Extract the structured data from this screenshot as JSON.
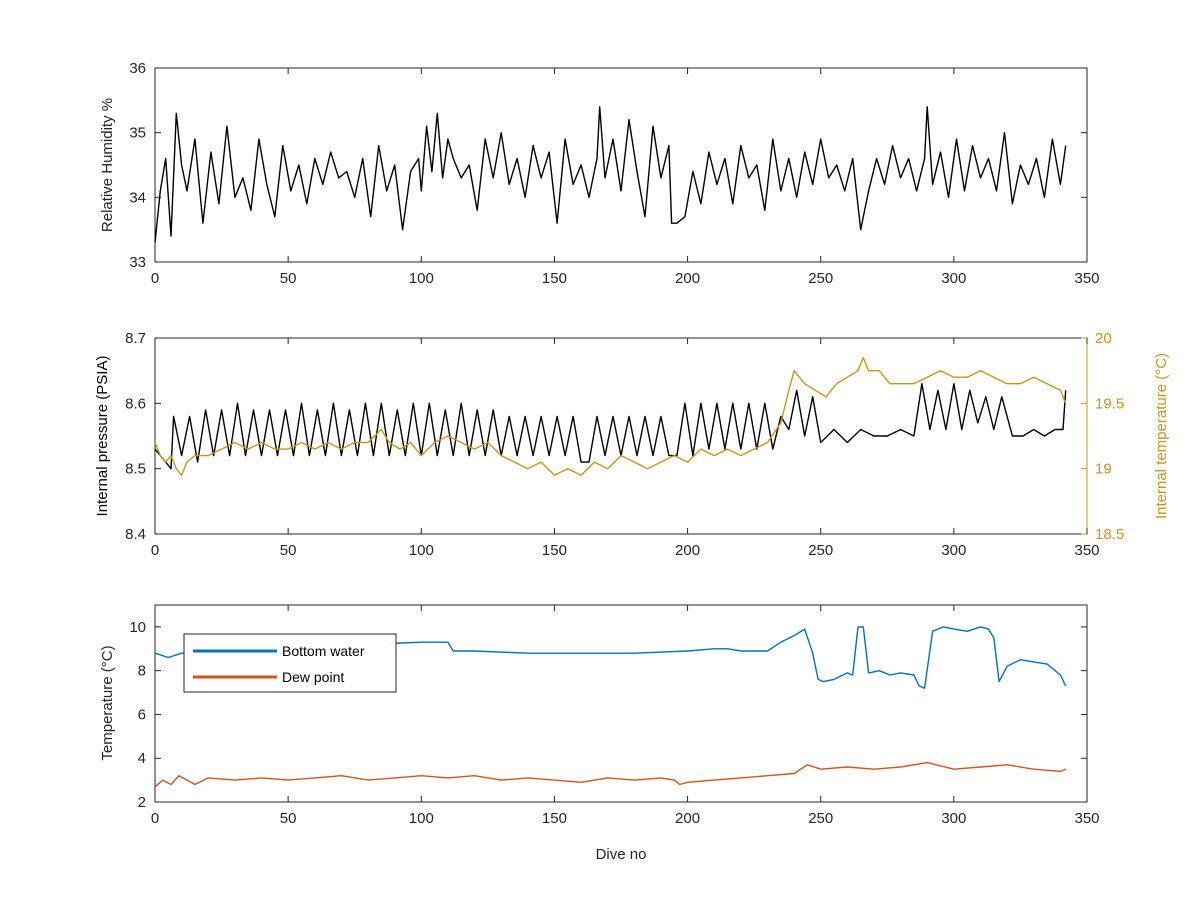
{
  "colors": {
    "black": "#000000",
    "gold": "#c8961e",
    "blue": "#0072bd",
    "orange": "#d95319",
    "axis": "#262626"
  },
  "chart_data": [
    {
      "type": "line",
      "xlabel": "",
      "ylabel": "Relative Humidity %",
      "xlim": [
        0,
        350
      ],
      "ylim": [
        33,
        36
      ],
      "xticks": [
        0,
        50,
        100,
        150,
        200,
        250,
        300,
        350
      ],
      "yticks": [
        33,
        34,
        35,
        36
      ],
      "series": [
        {
          "color": "#000000",
          "x": [
            0,
            2,
            4,
            6,
            8,
            10,
            12,
            15,
            18,
            21,
            24,
            27,
            30,
            33,
            36,
            39,
            42,
            45,
            48,
            51,
            54,
            57,
            60,
            63,
            66,
            69,
            72,
            75,
            78,
            81,
            84,
            87,
            90,
            93,
            96,
            99,
            100,
            102,
            104,
            106,
            108,
            110,
            112,
            115,
            118,
            121,
            124,
            127,
            130,
            133,
            136,
            139,
            142,
            145,
            148,
            151,
            154,
            157,
            160,
            163,
            166,
            167,
            169,
            172,
            175,
            178,
            181,
            184,
            187,
            190,
            193,
            194,
            196,
            199,
            202,
            205,
            208,
            211,
            214,
            217,
            220,
            223,
            226,
            229,
            232,
            235,
            238,
            241,
            244,
            247,
            250,
            253,
            256,
            259,
            262,
            265,
            266,
            268,
            271,
            274,
            277,
            280,
            283,
            286,
            289,
            290,
            292,
            295,
            298,
            301,
            304,
            307,
            310,
            313,
            316,
            319,
            322,
            325,
            328,
            331,
            334,
            337,
            340,
            342
          ],
          "y": [
            33.3,
            34.1,
            34.6,
            33.4,
            35.3,
            34.5,
            34.1,
            34.9,
            33.6,
            34.7,
            33.9,
            35.1,
            34.0,
            34.3,
            33.8,
            34.9,
            34.2,
            33.7,
            34.8,
            34.1,
            34.5,
            33.9,
            34.6,
            34.2,
            34.7,
            34.3,
            34.4,
            34.0,
            34.6,
            33.7,
            34.8,
            34.1,
            34.5,
            33.5,
            34.4,
            34.6,
            34.1,
            35.1,
            34.4,
            35.3,
            34.3,
            34.9,
            34.6,
            34.3,
            34.5,
            33.8,
            34.9,
            34.3,
            35.0,
            34.2,
            34.6,
            34.0,
            34.8,
            34.3,
            34.7,
            33.6,
            34.9,
            34.2,
            34.5,
            34.0,
            34.6,
            35.4,
            34.3,
            34.9,
            34.1,
            35.2,
            34.4,
            33.7,
            35.1,
            34.3,
            34.8,
            33.6,
            33.6,
            33.7,
            34.4,
            33.9,
            34.7,
            34.2,
            34.6,
            33.9,
            34.8,
            34.3,
            34.5,
            33.8,
            34.9,
            34.1,
            34.6,
            34.0,
            34.7,
            34.2,
            34.9,
            34.3,
            34.5,
            34.1,
            34.6,
            33.5,
            33.7,
            34.1,
            34.6,
            34.2,
            34.8,
            34.3,
            34.6,
            34.1,
            34.6,
            35.4,
            34.2,
            34.7,
            34.0,
            34.9,
            34.1,
            34.8,
            34.3,
            34.6,
            34.1,
            35.0,
            33.9,
            34.5,
            34.2,
            34.6,
            34.0,
            34.9,
            34.2,
            34.8
          ]
        }
      ]
    },
    {
      "type": "line",
      "xlabel": "",
      "ylabel": "Internal pressure (PSIA)",
      "ylabel_right": "Internal temperature (°C)",
      "xlim": [
        0,
        350
      ],
      "ylim": [
        8.4,
        8.7
      ],
      "ylim_right": [
        18.5,
        20
      ],
      "xticks": [
        0,
        50,
        100,
        150,
        200,
        250,
        300,
        350
      ],
      "yticks": [
        8.4,
        8.5,
        8.6,
        8.7
      ],
      "yticks_right": [
        18.5,
        19,
        19.5,
        20
      ],
      "series": [
        {
          "axis": "left",
          "color": "#000000",
          "x": [
            0,
            2,
            4,
            6,
            7,
            10,
            13,
            16,
            19,
            22,
            25,
            28,
            31,
            34,
            37,
            40,
            43,
            46,
            49,
            52,
            55,
            58,
            61,
            64,
            67,
            70,
            73,
            76,
            79,
            82,
            85,
            88,
            91,
            94,
            97,
            100,
            103,
            106,
            109,
            112,
            115,
            118,
            121,
            124,
            127,
            130,
            133,
            136,
            139,
            142,
            145,
            148,
            151,
            154,
            157,
            160,
            163,
            166,
            169,
            172,
            175,
            178,
            181,
            184,
            187,
            190,
            193,
            196,
            199,
            202,
            205,
            208,
            211,
            214,
            217,
            220,
            223,
            226,
            229,
            232,
            235,
            238,
            241,
            244,
            247,
            250,
            255,
            260,
            265,
            270,
            275,
            280,
            285,
            288,
            291,
            294,
            297,
            300,
            303,
            306,
            309,
            312,
            315,
            318,
            322,
            326,
            330,
            334,
            338,
            341,
            342
          ],
          "y": [
            8.53,
            8.52,
            8.51,
            8.5,
            8.58,
            8.52,
            8.58,
            8.51,
            8.59,
            8.52,
            8.59,
            8.52,
            8.6,
            8.52,
            8.59,
            8.52,
            8.59,
            8.52,
            8.59,
            8.52,
            8.6,
            8.52,
            8.59,
            8.52,
            8.6,
            8.52,
            8.59,
            8.52,
            8.6,
            8.52,
            8.6,
            8.52,
            8.59,
            8.52,
            8.6,
            8.52,
            8.6,
            8.52,
            8.59,
            8.52,
            8.6,
            8.52,
            8.59,
            8.52,
            8.59,
            8.52,
            8.58,
            8.52,
            8.58,
            8.52,
            8.58,
            8.52,
            8.58,
            8.52,
            8.58,
            8.51,
            8.51,
            8.58,
            8.52,
            8.58,
            8.52,
            8.58,
            8.52,
            8.58,
            8.52,
            8.58,
            8.52,
            8.52,
            8.6,
            8.52,
            8.6,
            8.53,
            8.6,
            8.53,
            8.6,
            8.53,
            8.6,
            8.53,
            8.6,
            8.53,
            8.58,
            8.56,
            8.62,
            8.55,
            8.61,
            8.54,
            8.56,
            8.54,
            8.56,
            8.55,
            8.55,
            8.56,
            8.55,
            8.63,
            8.56,
            8.62,
            8.56,
            8.63,
            8.56,
            8.62,
            8.57,
            8.61,
            8.56,
            8.61,
            8.55,
            8.55,
            8.56,
            8.55,
            8.56,
            8.56,
            8.62
          ]
        },
        {
          "axis": "right",
          "color": "#c8961e",
          "x": [
            0,
            2,
            4,
            6,
            8,
            10,
            12,
            15,
            20,
            25,
            30,
            35,
            40,
            45,
            50,
            55,
            60,
            65,
            70,
            75,
            80,
            85,
            88,
            92,
            96,
            100,
            105,
            110,
            115,
            120,
            125,
            130,
            135,
            140,
            145,
            150,
            155,
            160,
            165,
            170,
            175,
            180,
            185,
            190,
            195,
            200,
            205,
            210,
            215,
            220,
            225,
            230,
            235,
            238,
            240,
            244,
            248,
            252,
            256,
            260,
            264,
            266,
            268,
            272,
            276,
            280,
            285,
            290,
            295,
            300,
            305,
            310,
            315,
            320,
            325,
            330,
            335,
            340,
            342
          ],
          "y": [
            19.2,
            19.1,
            19.05,
            19.1,
            19.0,
            18.95,
            19.05,
            19.1,
            19.1,
            19.15,
            19.2,
            19.15,
            19.2,
            19.15,
            19.15,
            19.2,
            19.15,
            19.2,
            19.15,
            19.2,
            19.2,
            19.3,
            19.2,
            19.15,
            19.2,
            19.1,
            19.2,
            19.25,
            19.2,
            19.15,
            19.2,
            19.1,
            19.05,
            19.0,
            19.05,
            18.95,
            19.0,
            18.95,
            19.05,
            19.0,
            19.1,
            19.05,
            19.0,
            19.05,
            19.1,
            19.05,
            19.15,
            19.1,
            19.15,
            19.1,
            19.15,
            19.2,
            19.35,
            19.6,
            19.75,
            19.65,
            19.6,
            19.55,
            19.65,
            19.7,
            19.75,
            19.85,
            19.75,
            19.75,
            19.65,
            19.65,
            19.65,
            19.7,
            19.75,
            19.7,
            19.7,
            19.75,
            19.7,
            19.65,
            19.65,
            19.7,
            19.65,
            19.6,
            19.5
          ]
        }
      ]
    },
    {
      "type": "line",
      "xlabel": "Dive no",
      "ylabel": "Temperature (°C)",
      "xlim": [
        0,
        350
      ],
      "ylim": [
        2,
        11
      ],
      "xticks": [
        0,
        50,
        100,
        150,
        200,
        250,
        300,
        350
      ],
      "yticks": [
        2,
        4,
        6,
        8,
        10
      ],
      "legend": "top-left",
      "series": [
        {
          "name": "Bottom water",
          "color": "#0072bd",
          "x": [
            0,
            5,
            10,
            20,
            40,
            60,
            80,
            100,
            110,
            112,
            120,
            140,
            160,
            180,
            200,
            210,
            215,
            220,
            230,
            235,
            240,
            244,
            247,
            249,
            251,
            255,
            260,
            262,
            264,
            266,
            268,
            272,
            276,
            280,
            285,
            287,
            289,
            292,
            296,
            300,
            305,
            310,
            313,
            315,
            317,
            320,
            325,
            330,
            335,
            340,
            342
          ],
          "y": [
            8.8,
            8.6,
            8.8,
            8.9,
            8.9,
            9.0,
            9.2,
            9.3,
            9.3,
            8.9,
            8.9,
            8.8,
            8.8,
            8.8,
            8.9,
            9.0,
            9.0,
            8.9,
            8.9,
            9.3,
            9.6,
            9.9,
            8.8,
            7.6,
            7.5,
            7.6,
            7.9,
            7.8,
            10.0,
            10.0,
            7.9,
            8.0,
            7.8,
            7.9,
            7.8,
            7.3,
            7.2,
            9.8,
            10.0,
            9.9,
            9.8,
            10.0,
            9.9,
            9.5,
            7.5,
            8.2,
            8.5,
            8.4,
            8.3,
            7.8,
            7.3
          ]
        },
        {
          "name": "Dew point",
          "color": "#d95319",
          "x": [
            0,
            3,
            6,
            9,
            12,
            15,
            20,
            30,
            40,
            50,
            60,
            70,
            80,
            90,
            100,
            110,
            120,
            130,
            140,
            150,
            160,
            170,
            180,
            190,
            195,
            197,
            200,
            210,
            220,
            230,
            240,
            245,
            250,
            260,
            270,
            280,
            290,
            300,
            310,
            320,
            330,
            340,
            342
          ],
          "y": [
            2.7,
            3.0,
            2.8,
            3.2,
            3.0,
            2.8,
            3.1,
            3.0,
            3.1,
            3.0,
            3.1,
            3.2,
            3.0,
            3.1,
            3.2,
            3.1,
            3.2,
            3.0,
            3.1,
            3.0,
            2.9,
            3.1,
            3.0,
            3.1,
            3.0,
            2.8,
            2.9,
            3.0,
            3.1,
            3.2,
            3.3,
            3.7,
            3.5,
            3.6,
            3.5,
            3.6,
            3.8,
            3.5,
            3.6,
            3.7,
            3.5,
            3.4,
            3.5
          ]
        }
      ]
    }
  ]
}
